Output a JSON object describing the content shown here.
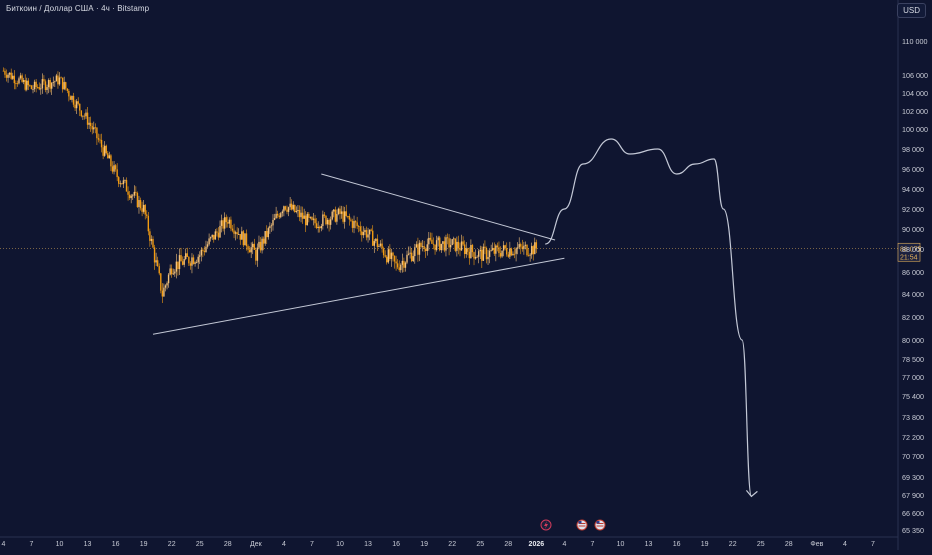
{
  "header": {
    "title": "Биткоин / Доллар США · 4ч · Bitstamp",
    "currency_button": "USD"
  },
  "price_tag": {
    "price": "88 075",
    "countdown": "21:54"
  },
  "colors": {
    "background": "#0f1530",
    "candle_up": "#f5c27a",
    "candle_down": "#f39c12",
    "drawing": "#c3c8d6",
    "price_line": "#e6b45c",
    "axis_text": "#c9ccd6"
  },
  "icons": [
    "lightning-event-icon",
    "us-flag-event-icon",
    "us-flag-event-icon"
  ],
  "chart_data": {
    "type": "candlestick",
    "title": "Биткоин / Доллар США · 4ч · Bitstamp",
    "y_tick_labels": [
      "110 000",
      "106 000",
      "104 000",
      "102 000",
      "100 000",
      "98 000",
      "96 000",
      "94 000",
      "92 000",
      "90 000",
      "88 000",
      "86 000",
      "84 000",
      "82 000",
      "80 000",
      "78 500",
      "77 000",
      "75 400",
      "73 800",
      "72 200",
      "70 700",
      "69 300",
      "67 900",
      "66 600",
      "65 350"
    ],
    "x_tick_labels": [
      "4",
      "7",
      "10",
      "13",
      "16",
      "19",
      "22",
      "25",
      "28",
      "Дек",
      "4",
      "7",
      "10",
      "13",
      "16",
      "19",
      "22",
      "25",
      "28",
      "2026",
      "4",
      "7",
      "10",
      "13",
      "16",
      "19",
      "22",
      "25",
      "28",
      "Фев",
      "4",
      "7"
    ],
    "series": [
      {
        "type": "candles",
        "x": [
          "Nov 4",
          "Nov 7",
          "Nov 10",
          "Nov 13",
          "Nov 16",
          "Nov 19",
          "Nov 21",
          "Nov 22",
          "Nov 25",
          "Nov 28",
          "Dec 1",
          "Dec 4",
          "Dec 7",
          "Dec 10",
          "Dec 13",
          "Dec 16",
          "Dec 19",
          "Dec 22",
          "Dec 25",
          "Dec 28",
          "Dec 31"
        ],
        "close": [
          106500,
          104500,
          105500,
          101000,
          95500,
          92000,
          84000,
          86500,
          87500,
          91000,
          87500,
          92500,
          90500,
          91500,
          89500,
          86500,
          88500,
          88500,
          87500,
          88000,
          88075
        ]
      },
      {
        "type": "projected-path",
        "x": [
          "Jan 1",
          "Jan 3",
          "Jan 5",
          "Jan 8",
          "Jan 10",
          "Jan 13",
          "Jan 15",
          "Jan 17",
          "Jan 19",
          "Jan 20",
          "Jan 22",
          "Jan 23"
        ],
        "y": [
          88500,
          92000,
          96500,
          99000,
          97500,
          98000,
          95500,
          96500,
          97000,
          92000,
          80000,
          67800
        ]
      }
    ],
    "trendlines": [
      {
        "name": "upper",
        "from": [
          "Dec 8",
          95500
        ],
        "to": [
          "Jan 2",
          88900
        ]
      },
      {
        "name": "lower",
        "from": [
          "Nov 20",
          80500
        ],
        "to": [
          "Jan 3",
          87200
        ]
      }
    ],
    "current_price": 88075,
    "grid": false
  }
}
